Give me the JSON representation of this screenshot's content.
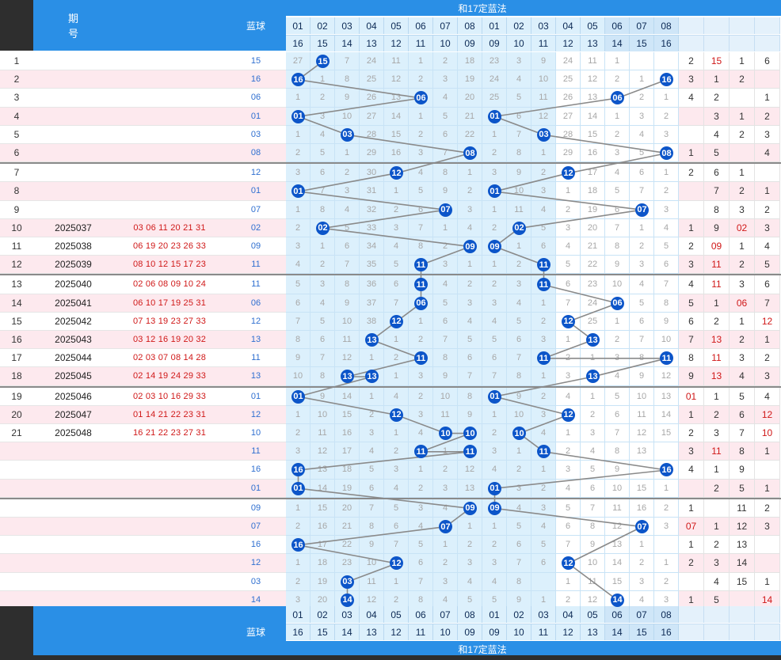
{
  "header": {
    "col_period": "期\n号",
    "col_blue": "蓝球",
    "group_title": "和17定蓝法",
    "top_numbers": [
      "01",
      "02",
      "03",
      "04",
      "05",
      "06",
      "07",
      "08",
      "01",
      "02",
      "03",
      "04",
      "05",
      "06",
      "07",
      "08"
    ],
    "pair_numbers": [
      "16",
      "15",
      "14",
      "13",
      "12",
      "11",
      "10",
      "09",
      "09",
      "10",
      "11",
      "12",
      "13",
      "14",
      "15",
      "16"
    ]
  },
  "footer": {
    "col_blue": "蓝球",
    "group_title": "和17定蓝法",
    "top_numbers": [
      "01",
      "02",
      "03",
      "04",
      "05",
      "06",
      "07",
      "08",
      "01",
      "02",
      "03",
      "04",
      "05",
      "06",
      "07",
      "08"
    ],
    "pair_numbers": [
      "16",
      "15",
      "14",
      "13",
      "12",
      "11",
      "10",
      "09",
      "09",
      "10",
      "11",
      "12",
      "13",
      "14",
      "15",
      "16"
    ]
  },
  "colors": {
    "header_blue": "#2a8fe6",
    "ball_blue": "#0c55c9",
    "row_pink": "#fde9ee",
    "region_light": "#dcf0fc",
    "red_text": "#d01818",
    "blue_text": "#2f6fd0"
  },
  "rows": [
    {
      "idx": "1",
      "term": "",
      "draw": "",
      "blue": "15",
      "a": [
        "27",
        "15",
        "7",
        "24",
        "11",
        "1",
        "2",
        "18"
      ],
      "b": [
        "23",
        "3",
        "9",
        "24",
        "11",
        "1",
        "",
        ""
      ],
      "s": [
        "2",
        "15",
        "1",
        "6"
      ]
    },
    {
      "idx": "2",
      "term": "",
      "draw": "",
      "blue": "16",
      "a": [
        "16",
        "1",
        "8",
        "25",
        "12",
        "2",
        "3",
        "19"
      ],
      "b": [
        "24",
        "4",
        "10",
        "25",
        "12",
        "2",
        "1",
        "16"
      ],
      "s": [
        "3",
        "1",
        "2",
        ""
      ]
    },
    {
      "idx": "3",
      "term": "",
      "draw": "",
      "blue": "06",
      "a": [
        "1",
        "2",
        "9",
        "26",
        "13",
        "06",
        "4",
        "20"
      ],
      "b": [
        "25",
        "5",
        "11",
        "26",
        "13",
        "06",
        "2",
        "1"
      ],
      "s": [
        "4",
        "2",
        "",
        "1"
      ]
    },
    {
      "idx": "4",
      "term": "",
      "draw": "",
      "blue": "01",
      "a": [
        "01",
        "3",
        "10",
        "27",
        "14",
        "1",
        "5",
        "21"
      ],
      "b": [
        "01",
        "6",
        "12",
        "27",
        "14",
        "1",
        "3",
        "2"
      ],
      "s": [
        "",
        "3",
        "1",
        "2"
      ]
    },
    {
      "idx": "5",
      "term": "",
      "draw": "",
      "blue": "03",
      "a": [
        "1",
        "4",
        "03",
        "28",
        "15",
        "2",
        "6",
        "22"
      ],
      "b": [
        "1",
        "7",
        "03",
        "28",
        "15",
        "2",
        "4",
        "3"
      ],
      "s": [
        "",
        "4",
        "2",
        "3"
      ]
    },
    {
      "idx": "6",
      "term": "",
      "draw": "",
      "blue": "08",
      "a": [
        "2",
        "5",
        "1",
        "29",
        "16",
        "3",
        "7",
        "08"
      ],
      "b": [
        "2",
        "8",
        "1",
        "29",
        "16",
        "3",
        "5",
        "08"
      ],
      "s": [
        "1",
        "5",
        "",
        "4"
      ]
    },
    {
      "idx": "7",
      "term": "",
      "draw": "",
      "blue": "12",
      "a": [
        "3",
        "6",
        "2",
        "30",
        "12",
        "4",
        "8",
        "1"
      ],
      "b": [
        "3",
        "9",
        "2",
        "12",
        "17",
        "4",
        "6",
        "1"
      ],
      "s": [
        "2",
        "6",
        "1",
        ""
      ]
    },
    {
      "idx": "8",
      "term": "",
      "draw": "",
      "blue": "01",
      "a": [
        "01",
        "7",
        "3",
        "31",
        "1",
        "5",
        "9",
        "2"
      ],
      "b": [
        "01",
        "10",
        "3",
        "1",
        "18",
        "5",
        "7",
        "2"
      ],
      "s": [
        "",
        "7",
        "2",
        "1"
      ]
    },
    {
      "idx": "9",
      "term": "",
      "draw": "",
      "blue": "07",
      "a": [
        "1",
        "8",
        "4",
        "32",
        "2",
        "6",
        "07",
        "3"
      ],
      "b": [
        "1",
        "11",
        "4",
        "2",
        "19",
        "6",
        "07",
        "3"
      ],
      "s": [
        "",
        "8",
        "3",
        "2"
      ]
    },
    {
      "idx": "10",
      "term": "2025037",
      "draw": "03 06 11 20 21 31",
      "blue": "02",
      "a": [
        "2",
        "02",
        "5",
        "33",
        "3",
        "7",
        "1",
        "4"
      ],
      "b": [
        "2",
        "02",
        "5",
        "3",
        "20",
        "7",
        "1",
        "4"
      ],
      "s": [
        "1",
        "9",
        "02",
        "3"
      ]
    },
    {
      "idx": "11",
      "term": "2025038",
      "draw": "06 19 20 23 26 33",
      "blue": "09",
      "a": [
        "3",
        "1",
        "6",
        "34",
        "4",
        "8",
        "2",
        "09"
      ],
      "b": [
        "09",
        "1",
        "6",
        "4",
        "21",
        "8",
        "2",
        "5"
      ],
      "s": [
        "2",
        "09",
        "1",
        "4"
      ]
    },
    {
      "idx": "12",
      "term": "2025039",
      "draw": "08 10 12 15 17 23",
      "blue": "11",
      "a": [
        "4",
        "2",
        "7",
        "35",
        "5",
        "11",
        "3",
        "1"
      ],
      "b": [
        "1",
        "2",
        "11",
        "5",
        "22",
        "9",
        "3",
        "6"
      ],
      "s": [
        "3",
        "11",
        "2",
        "5"
      ]
    },
    {
      "idx": "13",
      "term": "2025040",
      "draw": "02 06 08 09 10 24",
      "blue": "11",
      "a": [
        "5",
        "3",
        "8",
        "36",
        "6",
        "11",
        "4",
        "2"
      ],
      "b": [
        "2",
        "3",
        "11",
        "6",
        "23",
        "10",
        "4",
        "7"
      ],
      "s": [
        "4",
        "11",
        "3",
        "6"
      ]
    },
    {
      "idx": "14",
      "term": "2025041",
      "draw": "06 10 17 19 25 31",
      "blue": "06",
      "a": [
        "6",
        "4",
        "9",
        "37",
        "7",
        "06",
        "5",
        "3"
      ],
      "b": [
        "3",
        "4",
        "1",
        "7",
        "24",
        "06",
        "5",
        "8"
      ],
      "s": [
        "5",
        "1",
        "06",
        "7"
      ]
    },
    {
      "idx": "15",
      "term": "2025042",
      "draw": "07 13 19 23 27 33",
      "blue": "12",
      "a": [
        "7",
        "5",
        "10",
        "38",
        "12",
        "1",
        "6",
        "4"
      ],
      "b": [
        "4",
        "5",
        "2",
        "12",
        "25",
        "1",
        "6",
        "9"
      ],
      "s": [
        "6",
        "2",
        "1",
        "12"
      ]
    },
    {
      "idx": "16",
      "term": "2025043",
      "draw": "03 12 16 19 20 32",
      "blue": "13",
      "a": [
        "8",
        "6",
        "11",
        "13",
        "1",
        "2",
        "7",
        "5"
      ],
      "b": [
        "5",
        "6",
        "3",
        "1",
        "13",
        "2",
        "7",
        "10"
      ],
      "s": [
        "7",
        "13",
        "2",
        "1"
      ]
    },
    {
      "idx": "17",
      "term": "2025044",
      "draw": "02 03 07 08 14 28",
      "blue": "11",
      "a": [
        "9",
        "7",
        "12",
        "1",
        "2",
        "11",
        "8",
        "6"
      ],
      "b": [
        "6",
        "7",
        "11",
        "2",
        "1",
        "3",
        "8",
        "11"
      ],
      "s": [
        "8",
        "11",
        "3",
        "2"
      ]
    },
    {
      "idx": "18",
      "term": "2025045",
      "draw": "02 14 19 24 29 33",
      "blue": "13",
      "a": [
        "10",
        "8",
        "13",
        "13",
        "1",
        "3",
        "9",
        "7"
      ],
      "b": [
        "7",
        "8",
        "1",
        "3",
        "13",
        "4",
        "9",
        "12"
      ],
      "s": [
        "9",
        "13",
        "4",
        "3"
      ]
    },
    {
      "idx": "19",
      "term": "2025046",
      "draw": "02 03 10 16 29 33",
      "blue": "01",
      "a": [
        "01",
        "9",
        "14",
        "1",
        "4",
        "2",
        "10",
        "8"
      ],
      "b": [
        "01",
        "9",
        "2",
        "4",
        "1",
        "5",
        "10",
        "13"
      ],
      "s": [
        "01",
        "1",
        "5",
        "4"
      ]
    },
    {
      "idx": "20",
      "term": "2025047",
      "draw": "01 14 21 22 23 31",
      "blue": "12",
      "a": [
        "1",
        "10",
        "15",
        "2",
        "12",
        "3",
        "11",
        "9"
      ],
      "b": [
        "1",
        "10",
        "3",
        "12",
        "2",
        "6",
        "11",
        "14"
      ],
      "s": [
        "1",
        "2",
        "6",
        "12"
      ]
    },
    {
      "idx": "21",
      "term": "2025048",
      "draw": "16 21 22 23 27 31",
      "blue": "10",
      "a": [
        "2",
        "11",
        "16",
        "3",
        "1",
        "4",
        "10",
        "10"
      ],
      "b": [
        "2",
        "10",
        "4",
        "1",
        "3",
        "7",
        "12",
        "15"
      ],
      "s": [
        "2",
        "3",
        "7",
        "10"
      ]
    },
    {
      "idx": "",
      "term": "",
      "draw": "",
      "blue": "11",
      "a": [
        "3",
        "12",
        "17",
        "4",
        "2",
        "11",
        "1",
        "11"
      ],
      "b": [
        "3",
        "1",
        "11",
        "2",
        "4",
        "8",
        "13",
        ""
      ],
      "s": [
        "3",
        "11",
        "8",
        "1"
      ]
    },
    {
      "idx": "",
      "term": "",
      "draw": "",
      "blue": "16",
      "a": [
        "16",
        "13",
        "18",
        "5",
        "3",
        "1",
        "2",
        "12"
      ],
      "b": [
        "4",
        "2",
        "1",
        "3",
        "5",
        "9",
        "",
        "16"
      ],
      "s": [
        "4",
        "1",
        "9",
        ""
      ]
    },
    {
      "idx": "",
      "term": "",
      "draw": "",
      "blue": "01",
      "a": [
        "01",
        "14",
        "19",
        "6",
        "4",
        "2",
        "3",
        "13"
      ],
      "b": [
        "01",
        "3",
        "2",
        "4",
        "6",
        "10",
        "15",
        "1"
      ],
      "s": [
        "",
        "2",
        "5",
        "1"
      ]
    },
    {
      "idx": "",
      "term": "",
      "draw": "",
      "blue": "09",
      "a": [
        "1",
        "15",
        "20",
        "7",
        "5",
        "3",
        "4",
        "09"
      ],
      "b": [
        "09",
        "4",
        "3",
        "5",
        "7",
        "11",
        "16",
        "2"
      ],
      "s": [
        "1",
        "",
        "11",
        "2"
      ]
    },
    {
      "idx": "",
      "term": "",
      "draw": "",
      "blue": "07",
      "a": [
        "2",
        "16",
        "21",
        "8",
        "6",
        "4",
        "07",
        "1"
      ],
      "b": [
        "1",
        "5",
        "4",
        "6",
        "8",
        "12",
        "07",
        "3"
      ],
      "s": [
        "07",
        "1",
        "12",
        "3"
      ]
    },
    {
      "idx": "",
      "term": "",
      "draw": "",
      "blue": "16",
      "a": [
        "16",
        "17",
        "22",
        "9",
        "7",
        "5",
        "1",
        "2"
      ],
      "b": [
        "2",
        "6",
        "5",
        "7",
        "9",
        "13",
        "1",
        ""
      ],
      "s": [
        "1",
        "2",
        "13",
        ""
      ]
    },
    {
      "idx": "",
      "term": "",
      "draw": "",
      "blue": "12",
      "a": [
        "1",
        "18",
        "23",
        "10",
        "12",
        "6",
        "2",
        "3"
      ],
      "b": [
        "3",
        "7",
        "6",
        "12",
        "10",
        "14",
        "2",
        "1"
      ],
      "s": [
        "2",
        "3",
        "14",
        ""
      ]
    },
    {
      "idx": "",
      "term": "",
      "draw": "",
      "blue": "03",
      "a": [
        "2",
        "19",
        "03",
        "11",
        "1",
        "7",
        "3",
        "4"
      ],
      "b": [
        "4",
        "8",
        "",
        "1",
        "11",
        "15",
        "3",
        "2"
      ],
      "s": [
        "",
        "4",
        "15",
        "1"
      ]
    },
    {
      "idx": "",
      "term": "",
      "draw": "",
      "blue": "14",
      "a": [
        "3",
        "20",
        "14",
        "12",
        "2",
        "8",
        "4",
        "5"
      ],
      "b": [
        "5",
        "9",
        "1",
        "2",
        "12",
        "14",
        "4",
        "3"
      ],
      "s": [
        "1",
        "5",
        "",
        "14"
      ]
    }
  ]
}
